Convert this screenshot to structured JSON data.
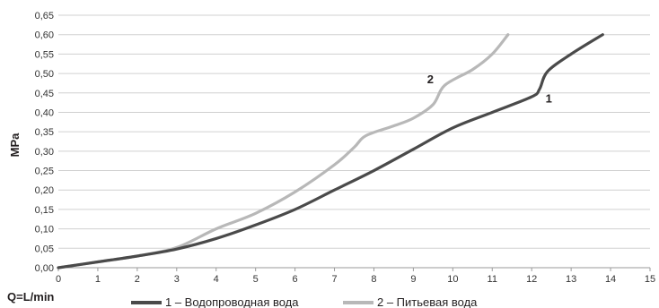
{
  "chart_data": {
    "type": "line",
    "xlabel": "Q=L/min",
    "ylabel": "MPa",
    "xlim": [
      0,
      15
    ],
    "ylim": [
      0,
      0.65
    ],
    "x_ticks": [
      "0",
      "1",
      "2",
      "3",
      "4",
      "5",
      "6",
      "7",
      "8",
      "9",
      "10",
      "11",
      "12",
      "13",
      "14",
      "15"
    ],
    "y_ticks": [
      "0,00",
      "0,05",
      "0,10",
      "0,15",
      "0,20",
      "0,25",
      "0,30",
      "0,35",
      "0,40",
      "0,45",
      "0,50",
      "0,55",
      "0,60",
      "0,65"
    ],
    "grid": "horizontal",
    "legend_position": "bottom",
    "series": [
      {
        "name": "1 – Водопроводная вода",
        "curve_label": "1",
        "color": "#4a4a4a",
        "x": [
          0,
          1,
          2,
          3,
          4,
          5,
          6,
          7,
          8,
          9,
          10,
          11,
          12,
          12.2,
          12.4,
          13,
          13.8
        ],
        "y": [
          0,
          0.015,
          0.03,
          0.048,
          0.075,
          0.11,
          0.15,
          0.2,
          0.25,
          0.305,
          0.36,
          0.4,
          0.44,
          0.46,
          0.505,
          0.55,
          0.6
        ]
      },
      {
        "name": "2 – Питьевая вода",
        "curve_label": "2",
        "color": "#b8b8b8",
        "x": [
          0,
          1,
          2,
          3,
          4,
          5,
          6,
          7,
          7.5,
          7.8,
          8.5,
          9,
          9.5,
          9.8,
          10.5,
          11,
          11.4
        ],
        "y": [
          0,
          0.015,
          0.03,
          0.052,
          0.1,
          0.14,
          0.195,
          0.265,
          0.31,
          0.34,
          0.365,
          0.385,
          0.42,
          0.47,
          0.51,
          0.55,
          0.6
        ]
      }
    ]
  }
}
